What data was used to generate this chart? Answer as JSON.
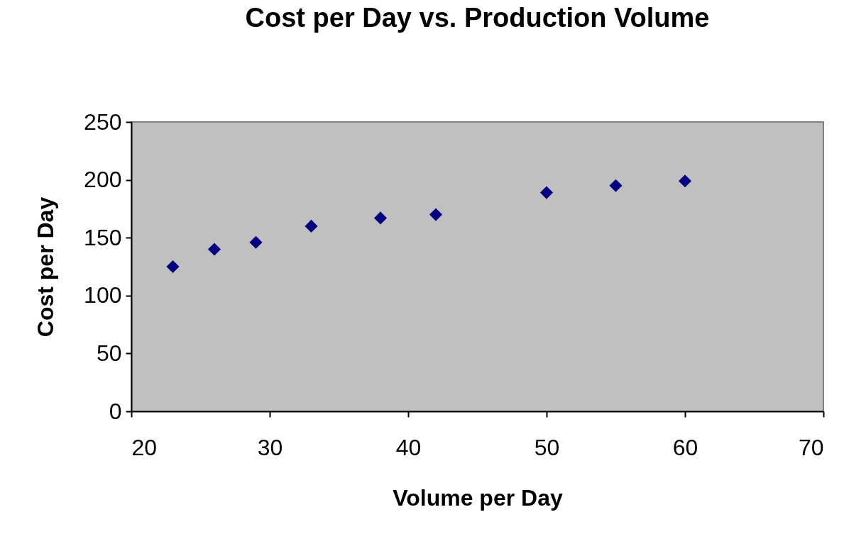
{
  "chart_data": {
    "type": "scatter",
    "title": "Cost per Day vs. Production Volume",
    "xlabel": "Volume per Day",
    "ylabel": "Cost per Day",
    "x": [
      23,
      26,
      29,
      33,
      38,
      42,
      50,
      55,
      60
    ],
    "series": [
      {
        "color": "#000080",
        "values": [
          125,
          140,
          146,
          160,
          167,
          170,
          189,
          195,
          199
        ]
      }
    ],
    "xlim": [
      20,
      70
    ],
    "xticks": [
      20,
      30,
      40,
      50,
      60,
      70
    ],
    "ylim": [
      0,
      250
    ],
    "yticks": [
      0,
      50,
      100,
      150,
      200,
      250
    ],
    "grid": false,
    "marker": "diamond"
  }
}
